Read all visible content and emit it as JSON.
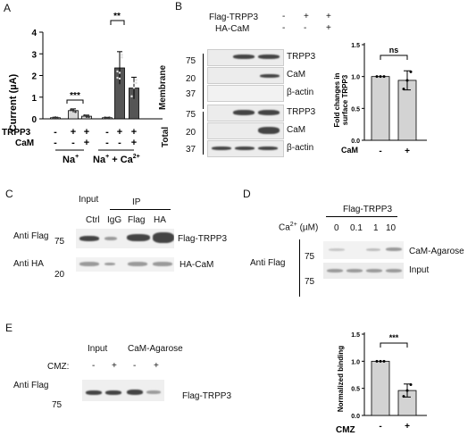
{
  "panels": {
    "A": "A",
    "B": "B",
    "C": "C",
    "D": "D",
    "E": "E"
  },
  "panelA": {
    "ylabel": "Current (µA)",
    "yticks": [
      "0",
      "1",
      "2",
      "3",
      "4"
    ],
    "row_labels": [
      "TRPP3",
      "CaM"
    ],
    "trpp3_signs": [
      "-",
      "+",
      "+",
      "-",
      "+",
      "+"
    ],
    "cam_signs": [
      "-",
      "-",
      "+",
      "-",
      "-",
      "+"
    ],
    "group1": "Na",
    "group2": "Na",
    "group2_ca": " + Ca",
    "sig1": "***",
    "sig2": "**"
  },
  "panelB": {
    "header_row1": "Flag-TRPP3",
    "header_row2": "HA-CaM",
    "signs1": [
      "-",
      "+",
      "+"
    ],
    "signs2": [
      "-",
      "-",
      "+"
    ],
    "section_membrane": "Membrane",
    "section_total": "Total",
    "mw": [
      "75",
      "20",
      "37",
      "75",
      "20",
      "37"
    ],
    "bands": [
      "TRPP3",
      "CaM",
      "β-actin",
      "TRPP3",
      "CaM",
      "β-actin"
    ],
    "bar_ylabel_1": "Fold changes in",
    "bar_ylabel_2": "surface TRPP3",
    "bar_yticks": [
      "0.0",
      "0.5",
      "1.0",
      "1.5"
    ],
    "bar_xlabel": "CaM",
    "bar_signs": [
      "-",
      "+"
    ],
    "sig": "ns"
  },
  "panelC": {
    "input": "Input",
    "ip": "IP",
    "lanes": [
      "Ctrl",
      "IgG",
      "Flag",
      "HA"
    ],
    "row_labels": [
      "Anti Flag",
      "Anti HA"
    ],
    "mw": [
      "75",
      "20"
    ],
    "bands": [
      "Flag-TRPP3",
      "HA-CaM"
    ]
  },
  "panelD": {
    "header": "Flag-TRPP3",
    "ca_label": "Ca",
    "ca_unit": "(µM)",
    "conc": [
      "0",
      "0.1",
      "1",
      "10"
    ],
    "row_label": "Anti Flag",
    "mw": [
      "75",
      "75"
    ],
    "bands": [
      "CaM-Agarose",
      "Input"
    ]
  },
  "panelE": {
    "input": "Input",
    "cam_agarose": "CaM-Agarose",
    "cmz": "CMZ:",
    "signs": [
      "-",
      "+",
      "-",
      "+"
    ],
    "row_label": "Anti Flag",
    "mw": "75",
    "band": "Flag-TRPP3",
    "bar_ylabel": "Normalized binding",
    "bar_yticks": [
      "0.0",
      "0.5",
      "1.0",
      "1.5"
    ],
    "bar_xlabel": "CMZ",
    "bar_signs": [
      "-",
      "+"
    ],
    "sig": "***"
  },
  "chart_data": [
    {
      "type": "bar",
      "panel": "A",
      "ylabel": "Current (µA)",
      "ylim": [
        0,
        4
      ],
      "categories": [
        "Na+ / -/-",
        "Na+ / TRPP3",
        "Na+ / TRPP3+CaM",
        "Na+ + Ca2+ / -/-",
        "Na+ + Ca2+ / TRPP3",
        "Na+ + Ca2+ / TRPP3+CaM"
      ],
      "values": [
        0.05,
        0.38,
        0.12,
        0.05,
        2.35,
        1.42
      ],
      "errors": [
        0.02,
        0.08,
        0.05,
        0.02,
        0.75,
        0.5
      ],
      "colors": [
        "#ffffff",
        "#d8d8d8",
        "#d8d8d8",
        "#ffffff",
        "#555555",
        "#555555"
      ]
    },
    {
      "type": "bar",
      "panel": "B",
      "ylabel": "Fold changes in surface TRPP3",
      "ylim": [
        0,
        1.5
      ],
      "categories": [
        "-",
        "+"
      ],
      "values": [
        1.0,
        0.94
      ],
      "errors": [
        0.0,
        0.15
      ]
    },
    {
      "type": "bar",
      "panel": "E",
      "ylabel": "Normalized binding",
      "ylim": [
        0,
        1.5
      ],
      "categories": [
        "-",
        "+"
      ],
      "values": [
        1.0,
        0.46
      ],
      "errors": [
        0.0,
        0.12
      ]
    }
  ]
}
